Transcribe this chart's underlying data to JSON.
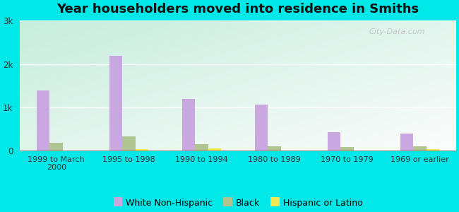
{
  "title": "Year householders moved into residence in Smiths",
  "categories": [
    "1999 to March\n2000",
    "1995 to 1998",
    "1990 to 1994",
    "1980 to 1989",
    "1970 to 1979",
    "1969 or earlier"
  ],
  "white": [
    1380,
    2180,
    1200,
    1060,
    430,
    400
  ],
  "black": [
    180,
    330,
    140,
    90,
    75,
    95
  ],
  "hispanic": [
    0,
    40,
    55,
    0,
    0,
    30
  ],
  "white_color": "#c9a8e0",
  "black_color": "#b0c490",
  "hispanic_color": "#f0e855",
  "background_outer": "#00e8e8",
  "title_fontsize": 13,
  "ylim": [
    0,
    3000
  ],
  "yticks": [
    0,
    1000,
    2000,
    3000
  ],
  "ytick_labels": [
    "0",
    "1k",
    "2k",
    "3k"
  ],
  "bar_width": 0.18,
  "legend_labels": [
    "White Non-Hispanic",
    "Black",
    "Hispanic or Latino"
  ]
}
